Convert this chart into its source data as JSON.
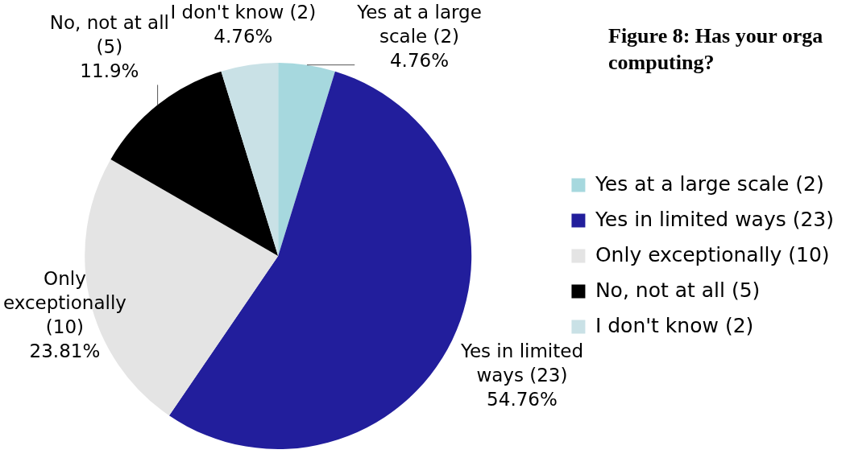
{
  "chart_data": {
    "type": "pie",
    "title": "Figure 8: Has your orga computing?",
    "categories": [
      "Yes at a large scale (2)",
      "Yes in limited ways (23)",
      "Only exceptionally (10)",
      "No, not at all (5)",
      "I don't know (2)"
    ],
    "values": [
      4.76,
      54.76,
      23.81,
      11.9,
      4.76
    ],
    "colors": [
      "#a6d8de",
      "#221e9c",
      "#e4e4e4",
      "#000000",
      "#c9e1e6"
    ],
    "value_labels": [
      "4.76%",
      "54.76%",
      "23.81%",
      "11.9%",
      "4.76%"
    ],
    "legend": "right"
  }
}
